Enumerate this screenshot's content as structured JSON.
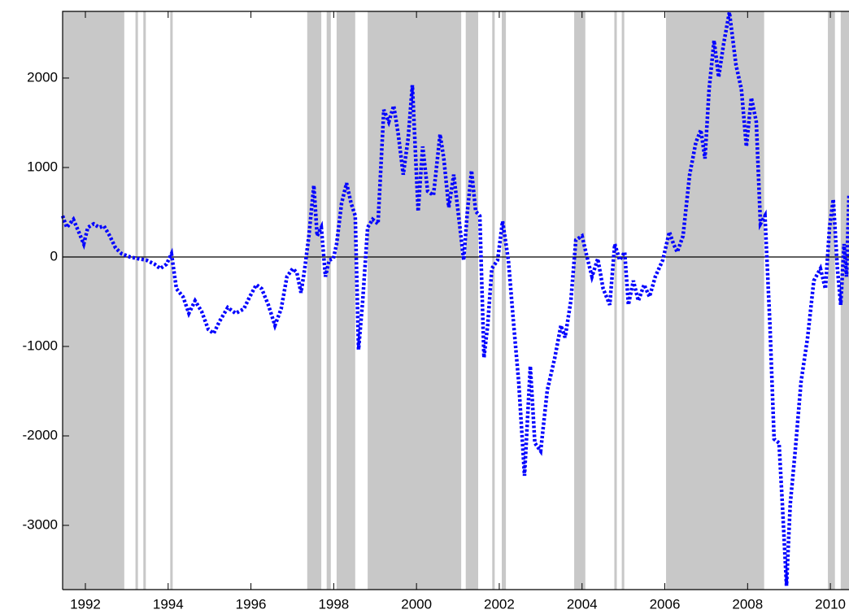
{
  "chart_data": {
    "type": "line",
    "xlim": [
      1991.45,
      2010.45
    ],
    "ylim": [
      -3718,
      2745
    ],
    "xticks": [
      1992,
      1994,
      1996,
      1998,
      2000,
      2002,
      2004,
      2006,
      2008,
      2010
    ],
    "yticks": [
      -3000,
      -2000,
      -1000,
      0,
      1000,
      2000
    ],
    "hline": 0,
    "shade_color": "#c8c8c8",
    "shaded_regions": [
      [
        1991.45,
        1992.94
      ],
      [
        1993.21,
        1993.27
      ],
      [
        1993.4,
        1993.46
      ],
      [
        1994.05,
        1994.11
      ],
      [
        1997.36,
        1997.7
      ],
      [
        1997.83,
        1997.93
      ],
      [
        1998.07,
        1998.52
      ],
      [
        1998.82,
        2001.08
      ],
      [
        2001.19,
        2001.49
      ],
      [
        2001.83,
        2001.89
      ],
      [
        2002.06,
        2002.16
      ],
      [
        2003.81,
        2004.08
      ],
      [
        2004.78,
        2004.84
      ],
      [
        2004.96,
        2005.02
      ],
      [
        2006.03,
        2008.4
      ],
      [
        2009.94,
        2010.11
      ],
      [
        2010.25,
        2010.45
      ]
    ],
    "series": [
      {
        "color": "#0000ff",
        "x": [
          1991.45,
          1991.55,
          1991.71,
          1991.84,
          1991.96,
          1992.06,
          1992.2,
          1992.33,
          1992.45,
          1992.59,
          1992.73,
          1992.88,
          1993.08,
          1993.28,
          1993.47,
          1993.67,
          1993.81,
          1993.96,
          1994.08,
          1994.2,
          1994.36,
          1994.5,
          1994.65,
          1994.81,
          1994.97,
          1995.1,
          1995.24,
          1995.44,
          1995.63,
          1995.83,
          1995.97,
          1996.13,
          1996.26,
          1996.42,
          1996.58,
          1996.73,
          1996.87,
          1997.01,
          1997.11,
          1997.21,
          1997.3,
          1997.4,
          1997.52,
          1997.6,
          1997.7,
          1997.8,
          1997.89,
          1997.99,
          1998.07,
          1998.19,
          1998.31,
          1998.42,
          1998.52,
          1998.6,
          1998.7,
          1998.82,
          1998.94,
          1999.07,
          1999.21,
          1999.33,
          1999.45,
          1999.56,
          1999.68,
          1999.8,
          1999.9,
          2000.04,
          2000.15,
          2000.27,
          2000.41,
          2000.57,
          2000.66,
          2000.78,
          2000.9,
          2001.04,
          2001.14,
          2001.23,
          2001.33,
          2001.43,
          2001.53,
          2001.63,
          2001.72,
          2001.82,
          2001.96,
          2002.08,
          2002.22,
          2002.35,
          2002.47,
          2002.61,
          2002.75,
          2002.86,
          2003.0,
          2003.16,
          2003.34,
          2003.49,
          2003.59,
          2003.73,
          2003.85,
          2004.0,
          2004.12,
          2004.24,
          2004.38,
          2004.51,
          2004.67,
          2004.79,
          2004.91,
          2005.03,
          2005.12,
          2005.24,
          2005.36,
          2005.5,
          2005.63,
          2005.77,
          2005.95,
          2006.11,
          2006.21,
          2006.3,
          2006.44,
          2006.6,
          2006.75,
          2006.87,
          2006.97,
          2007.07,
          2007.19,
          2007.3,
          2007.42,
          2007.56,
          2007.72,
          2007.85,
          2007.97,
          2008.09,
          2008.21,
          2008.31,
          2008.42,
          2008.54,
          2008.64,
          2008.76,
          2008.84,
          2008.94,
          2009.03,
          2009.15,
          2009.29,
          2009.45,
          2009.6,
          2009.76,
          2009.88,
          2009.98,
          2010.07,
          2010.17,
          2010.25,
          2010.33,
          2010.39,
          2010.45
        ],
        "values": [
          460,
          330,
          420,
          280,
          145,
          330,
          370,
          330,
          345,
          235,
          100,
          35,
          0,
          -20,
          -35,
          -80,
          -130,
          -80,
          35,
          -355,
          -445,
          -630,
          -490,
          -610,
          -810,
          -855,
          -720,
          -565,
          -630,
          -580,
          -445,
          -310,
          -355,
          -535,
          -765,
          -580,
          -220,
          -130,
          -175,
          -400,
          -130,
          235,
          800,
          235,
          330,
          -220,
          -35,
          -20,
          145,
          600,
          825,
          600,
          460,
          -1035,
          -490,
          330,
          420,
          370,
          1645,
          1510,
          1690,
          1370,
          920,
          1330,
          1920,
          510,
          1235,
          735,
          690,
          1370,
          1100,
          555,
          920,
          370,
          -35,
          510,
          965,
          510,
          460,
          -1125,
          -765,
          -130,
          -35,
          400,
          -35,
          -765,
          -1400,
          -2445,
          -1220,
          -2080,
          -2170,
          -1490,
          -1130,
          -765,
          -900,
          -490,
          190,
          235,
          0,
          -220,
          -20,
          -355,
          -535,
          145,
          -35,
          55,
          -535,
          -265,
          -490,
          -310,
          -445,
          -220,
          -35,
          280,
          145,
          55,
          235,
          920,
          1280,
          1420,
          1100,
          1875,
          2420,
          2010,
          2380,
          2735,
          2145,
          1875,
          1235,
          1780,
          1510,
          370,
          460,
          -765,
          -2035,
          -2080,
          -2765,
          -3675,
          -2765,
          -2170,
          -1400,
          -900,
          -265,
          -130,
          -355,
          330,
          645,
          -130,
          -535,
          145,
          -220,
          690
        ]
      }
    ]
  }
}
